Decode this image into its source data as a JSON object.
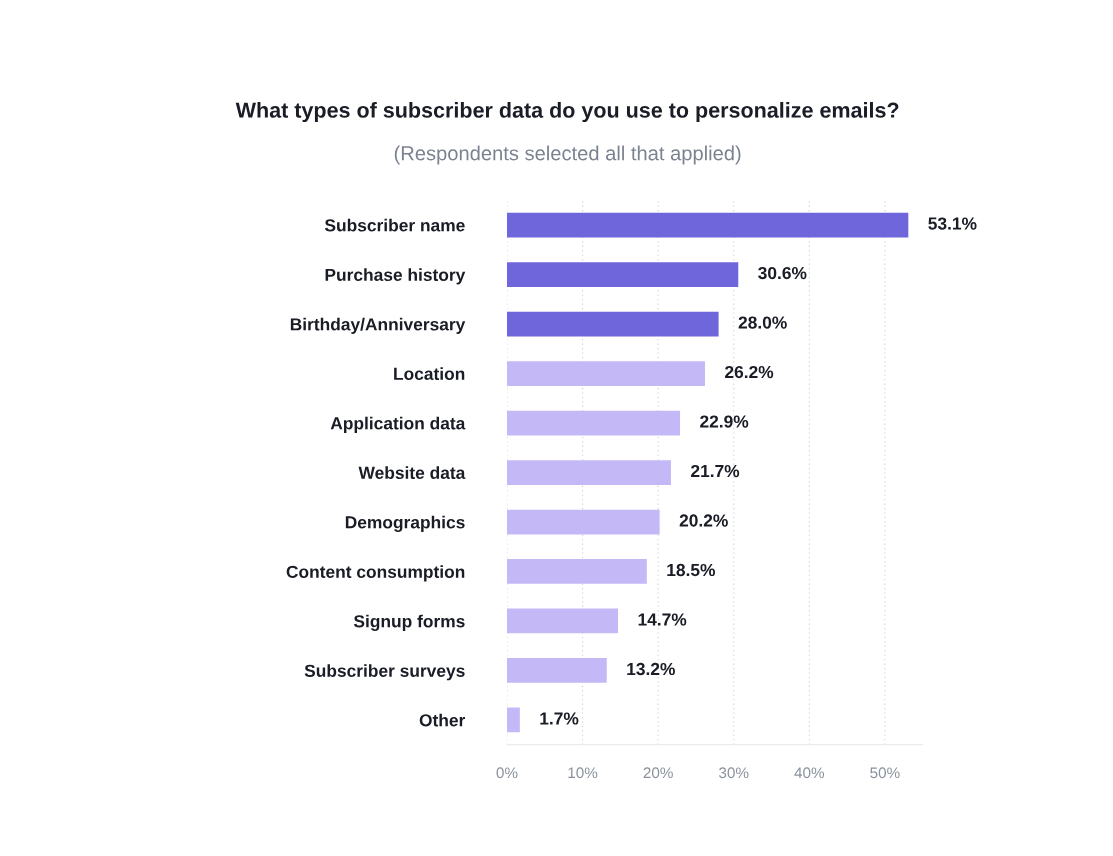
{
  "chart_data": {
    "type": "bar",
    "orientation": "horizontal",
    "title": "What types of subscriber data do you use to personalize emails?",
    "subtitle": "(Respondents selected all that applied)",
    "categories": [
      "Subscriber name",
      "Purchase history",
      "Birthday/Anniversary",
      "Location",
      "Application data",
      "Website data",
      "Demographics",
      "Content consumption",
      "Signup forms",
      "Subscriber surveys",
      "Other"
    ],
    "values": [
      53.1,
      30.6,
      28.0,
      26.2,
      22.9,
      21.7,
      20.2,
      18.5,
      14.7,
      13.2,
      1.7
    ],
    "colors": [
      "#7066db",
      "#7066db",
      "#7066db",
      "#c5b8f7",
      "#c5b8f7",
      "#c5b8f7",
      "#c5b8f7",
      "#c5b8f7",
      "#c5b8f7",
      "#c5b8f7",
      "#c5b8f7"
    ],
    "value_labels": [
      "53.1%",
      "30.6%",
      "28.0%",
      "26.2%",
      "22.9%",
      "21.7%",
      "20.2%",
      "18.5%",
      "14.7%",
      "13.2%",
      "1.7%"
    ],
    "xlim": [
      0,
      55
    ],
    "xticks": [
      {
        "value": 0,
        "label": "0%"
      },
      {
        "value": 10,
        "label": "10%"
      },
      {
        "value": 20,
        "label": "20%"
      },
      {
        "value": 30,
        "label": "30%"
      },
      {
        "value": 40,
        "label": "40%"
      },
      {
        "value": 50,
        "label": "50%"
      }
    ],
    "grid": "x"
  }
}
